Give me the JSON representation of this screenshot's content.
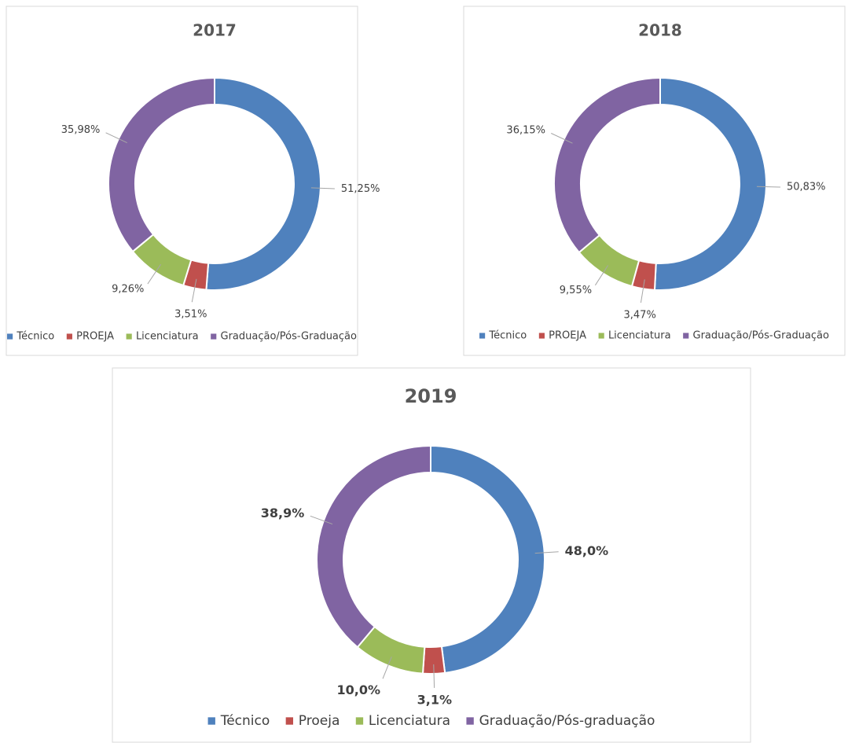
{
  "chart_data": [
    {
      "type": "donut",
      "title": "2017",
      "categories": [
        "Técnico",
        "PROEJA",
        "Licenciatura",
        "Graduação/Pós-Graduação"
      ],
      "values": [
        51.25,
        3.51,
        9.26,
        35.98
      ],
      "value_labels": [
        "51,25%",
        "3,51%",
        "9,26%",
        "35,98%"
      ],
      "colors": [
        "#4f81bd",
        "#c0504d",
        "#9bbb59",
        "#8064a2"
      ]
    },
    {
      "type": "donut",
      "title": "2018",
      "categories": [
        "Técnico",
        "PROEJA",
        "Licenciatura",
        "Graduação/Pós-Graduação"
      ],
      "values": [
        50.83,
        3.47,
        9.55,
        36.15
      ],
      "value_labels": [
        "50,83%",
        "3,47%",
        "9,55%",
        "36,15%"
      ],
      "colors": [
        "#4f81bd",
        "#c0504d",
        "#9bbb59",
        "#8064a2"
      ]
    },
    {
      "type": "donut",
      "title": "2019",
      "categories": [
        "Técnico",
        "Proeja",
        "Licenciatura",
        "Graduação/Pós-graduação"
      ],
      "values": [
        48.0,
        3.1,
        10.0,
        38.9
      ],
      "value_labels": [
        "48,0%",
        "3,1%",
        "10,0%",
        "38,9%"
      ],
      "colors": [
        "#4f81bd",
        "#c0504d",
        "#9bbb59",
        "#8064a2"
      ]
    }
  ]
}
